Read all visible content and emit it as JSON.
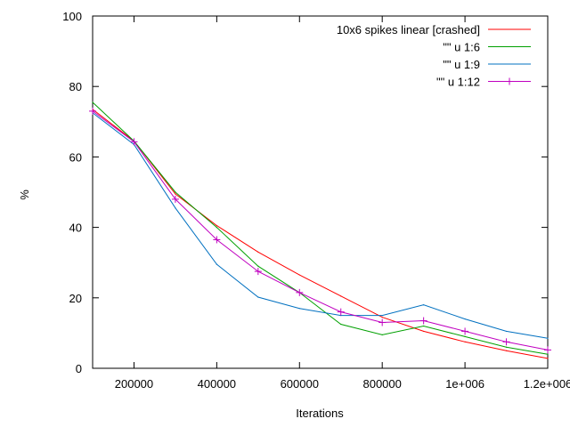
{
  "chart_data": {
    "type": "line",
    "title": "",
    "xlabel": "Iterations",
    "ylabel": "%",
    "xlim": [
      100000,
      1200000
    ],
    "ylim": [
      0,
      100
    ],
    "x_ticks": [
      {
        "value": 200000,
        "label": "200000"
      },
      {
        "value": 400000,
        "label": "400000"
      },
      {
        "value": 600000,
        "label": "600000"
      },
      {
        "value": 800000,
        "label": "800000"
      },
      {
        "value": 1000000,
        "label": "1e+006"
      },
      {
        "value": 1200000,
        "label": "1.2e+006"
      }
    ],
    "y_ticks": [
      {
        "value": 0,
        "label": "0"
      },
      {
        "value": 20,
        "label": "20"
      },
      {
        "value": 40,
        "label": "40"
      },
      {
        "value": 60,
        "label": "60"
      },
      {
        "value": 80,
        "label": "80"
      },
      {
        "value": 100,
        "label": "100"
      }
    ],
    "grid": false,
    "legend_position": "top-right",
    "series": [
      {
        "name": "10x6 spikes linear [crashed]",
        "color": "#ff0000",
        "marker": "none",
        "x": [
          100000,
          200000,
          300000,
          400000,
          500000,
          600000,
          700000,
          800000,
          900000,
          1000000,
          1100000,
          1200000
        ],
        "y": [
          73.5,
          64.5,
          49.5,
          40.5,
          33,
          26.5,
          20.5,
          14.5,
          10.5,
          7.5,
          5,
          2.8
        ]
      },
      {
        "name": "\"\" u 1:6",
        "color": "#00a000",
        "marker": "none",
        "x": [
          100000,
          200000,
          300000,
          400000,
          500000,
          600000,
          700000,
          800000,
          900000,
          1000000,
          1100000,
          1200000
        ],
        "y": [
          75.5,
          64.5,
          50,
          40,
          29,
          21.5,
          12.5,
          9.5,
          12,
          9,
          6,
          4
        ]
      },
      {
        "name": "\"\" u 1:9",
        "color": "#0070c0",
        "marker": "none",
        "x": [
          100000,
          200000,
          300000,
          400000,
          500000,
          600000,
          700000,
          800000,
          900000,
          1000000,
          1100000,
          1200000
        ],
        "y": [
          72.5,
          63.5,
          45.5,
          29.5,
          20.2,
          17,
          15,
          15,
          18,
          14,
          10.5,
          8.5
        ]
      },
      {
        "name": "\"\" u 1:12",
        "color": "#c000c0",
        "marker": "plus",
        "x": [
          100000,
          200000,
          300000,
          400000,
          500000,
          600000,
          700000,
          800000,
          900000,
          1000000,
          1100000,
          1200000
        ],
        "y": [
          73,
          64.3,
          48,
          36.5,
          27.5,
          21.5,
          16,
          13,
          13.5,
          10.5,
          7.5,
          5.2
        ]
      }
    ]
  }
}
